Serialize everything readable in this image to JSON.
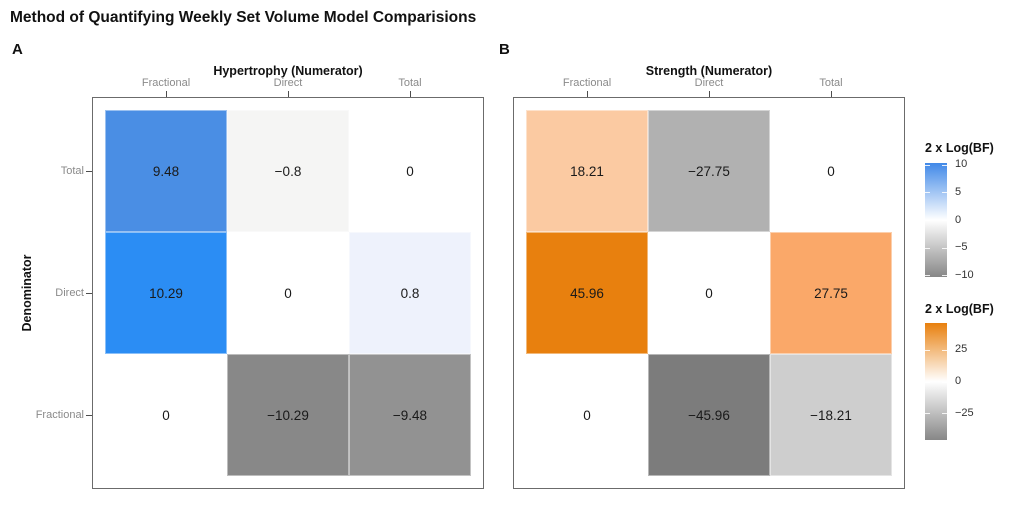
{
  "title": "Method of Quantifying Weekly Set Volume Model Comparisions",
  "y_axis_title": "Denominator",
  "panels": [
    {
      "tag": "A",
      "axis_title": "Hypertrophy (Numerator)",
      "columns": [
        "Fractional",
        "Direct",
        "Total"
      ],
      "rows": [
        "Total",
        "Direct",
        "Fractional"
      ],
      "cells": [
        {
          "label": "9.48",
          "color": "#4a8ee4"
        },
        {
          "label": "−0.8",
          "color": "#f5f5f4"
        },
        {
          "label": "0",
          "color": "#ffffff"
        },
        {
          "label": "10.29",
          "color": "#2b8df4"
        },
        {
          "label": "0",
          "color": "#ffffff"
        },
        {
          "label": "0.8",
          "color": "#eef2fc"
        },
        {
          "label": "0",
          "color": "#ffffff"
        },
        {
          "label": "−10.29",
          "color": "#888888"
        },
        {
          "label": "−9.48",
          "color": "#929292"
        }
      ]
    },
    {
      "tag": "B",
      "axis_title": "Strength (Numerator)",
      "columns": [
        "Fractional",
        "Direct",
        "Total"
      ],
      "rows": [
        "Total",
        "Direct",
        "Fractional"
      ],
      "cells": [
        {
          "label": "18.21",
          "color": "#fbcaa2"
        },
        {
          "label": "−27.75",
          "color": "#b1b1b1"
        },
        {
          "label": "0",
          "color": "#ffffff"
        },
        {
          "label": "45.96",
          "color": "#e8800e"
        },
        {
          "label": "0",
          "color": "#ffffff"
        },
        {
          "label": "27.75",
          "color": "#faa869"
        },
        {
          "label": "0",
          "color": "#ffffff"
        },
        {
          "label": "−45.96",
          "color": "#7c7c7c"
        },
        {
          "label": "−18.21",
          "color": "#cecece"
        }
      ]
    }
  ],
  "legends": [
    {
      "title": "2 x Log(BF)",
      "gradient": [
        "#4189e8",
        "#ffffff",
        "#878787"
      ],
      "limits": [
        -10.29,
        10.29
      ],
      "ticks": [
        {
          "value": 10,
          "label": "10"
        },
        {
          "value": 5,
          "label": "5"
        },
        {
          "value": 0,
          "label": "0"
        },
        {
          "value": -5,
          "label": "−5"
        },
        {
          "value": -10,
          "label": "−10"
        }
      ]
    },
    {
      "title": "2 x Log(BF)",
      "gradient": [
        "#e8800e",
        "#ffffff",
        "#878787"
      ],
      "limits": [
        -45.96,
        45.96
      ],
      "ticks": [
        {
          "value": 25,
          "label": "25"
        },
        {
          "value": 0,
          "label": "0"
        },
        {
          "value": -25,
          "label": "−25"
        }
      ]
    }
  ],
  "chart_data": [
    {
      "type": "heatmap",
      "title": "Hypertrophy (Numerator)",
      "x_categories": [
        "Fractional",
        "Direct",
        "Total"
      ],
      "y_categories": [
        "Total",
        "Direct",
        "Fractional"
      ],
      "values": [
        [
          9.48,
          -0.8,
          0
        ],
        [
          10.29,
          0,
          0.8
        ],
        [
          0,
          -10.29,
          -9.48
        ]
      ],
      "xlabel": "",
      "ylabel": "Denominator",
      "colorbar_title": "2 x Log(BF)",
      "colorbar_ticks": [
        10,
        5,
        0,
        -5,
        -10
      ],
      "color_limits": [
        -10.29,
        10.29
      ],
      "positive_color": "#2b8df4",
      "negative_color": "#878787",
      "annotations_shown_in_cells": true
    },
    {
      "type": "heatmap",
      "title": "Strength (Numerator)",
      "x_categories": [
        "Fractional",
        "Direct",
        "Total"
      ],
      "y_categories": [
        "Total",
        "Direct",
        "Fractional"
      ],
      "values": [
        [
          18.21,
          -27.75,
          0
        ],
        [
          45.96,
          0,
          27.75
        ],
        [
          0,
          -45.96,
          -18.21
        ]
      ],
      "xlabel": "",
      "ylabel": "Denominator",
      "colorbar_title": "2 x Log(BF)",
      "colorbar_ticks": [
        25,
        0,
        -25
      ],
      "color_limits": [
        -45.96,
        45.96
      ],
      "positive_color": "#e8800e",
      "negative_color": "#878787",
      "annotations_shown_in_cells": true
    }
  ]
}
